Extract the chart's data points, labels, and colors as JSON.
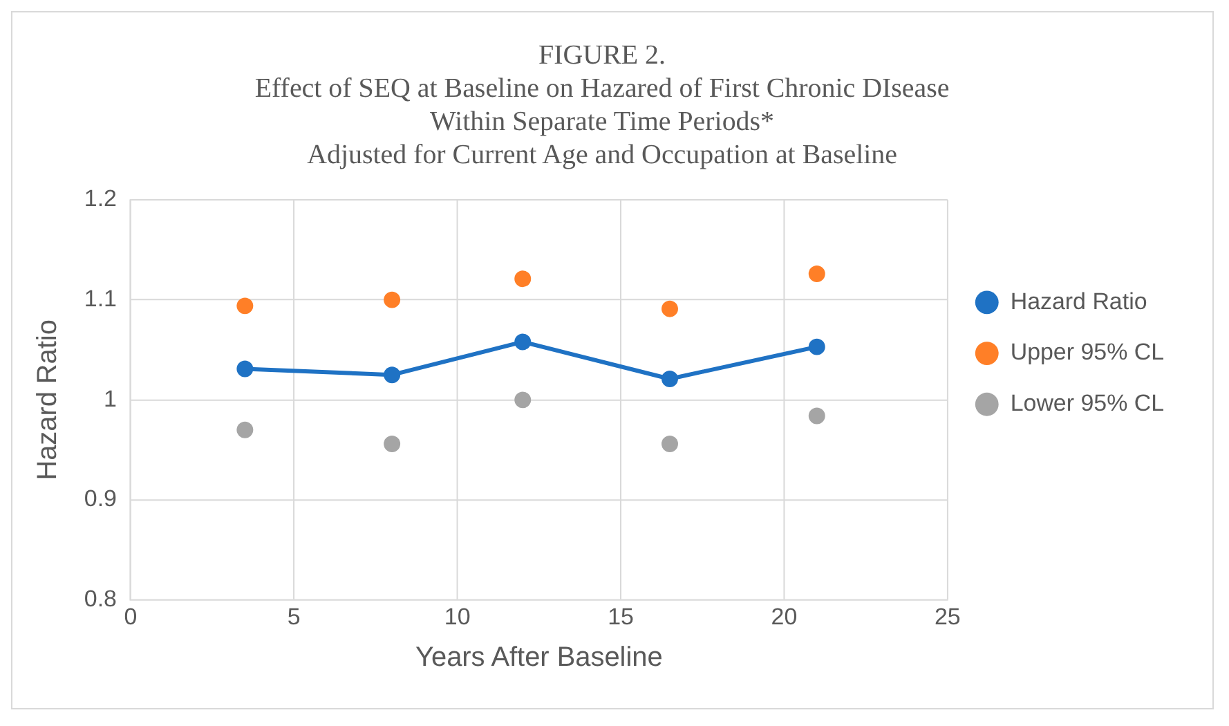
{
  "chart_data": {
    "type": "scatter",
    "title": "FIGURE 2.\nEffect of SEQ at Baseline on Hazared of First Chronic DIsease\nWithin Separate Time Periods*\nAdjusted for Current Age and Occupation at Baseline",
    "xlabel": "Years After Baseline",
    "ylabel": "Hazard Ratio",
    "x": [
      3.5,
      8,
      12,
      16.5,
      21
    ],
    "series": [
      {
        "name": "Hazard Ratio",
        "type": "line",
        "color": "#1f72c4",
        "values": [
          1.031,
          1.025,
          1.058,
          1.021,
          1.053
        ]
      },
      {
        "name": "Upper 95% CL",
        "color": "#ff7f27",
        "values": [
          1.094,
          1.1,
          1.121,
          1.091,
          1.126
        ]
      },
      {
        "name": "Lower 95% CL",
        "color": "#a5a5a5",
        "values": [
          0.97,
          0.956,
          1.0,
          0.956,
          0.984
        ]
      }
    ],
    "xlim": [
      0,
      25
    ],
    "xticks": [
      0,
      5,
      10,
      15,
      20,
      25
    ],
    "ylim": [
      0.8,
      1.2
    ],
    "yticks": [
      0.8,
      0.9,
      1,
      1.1,
      1.2
    ],
    "grid": true,
    "legend": "right",
    "marker": "circle"
  }
}
